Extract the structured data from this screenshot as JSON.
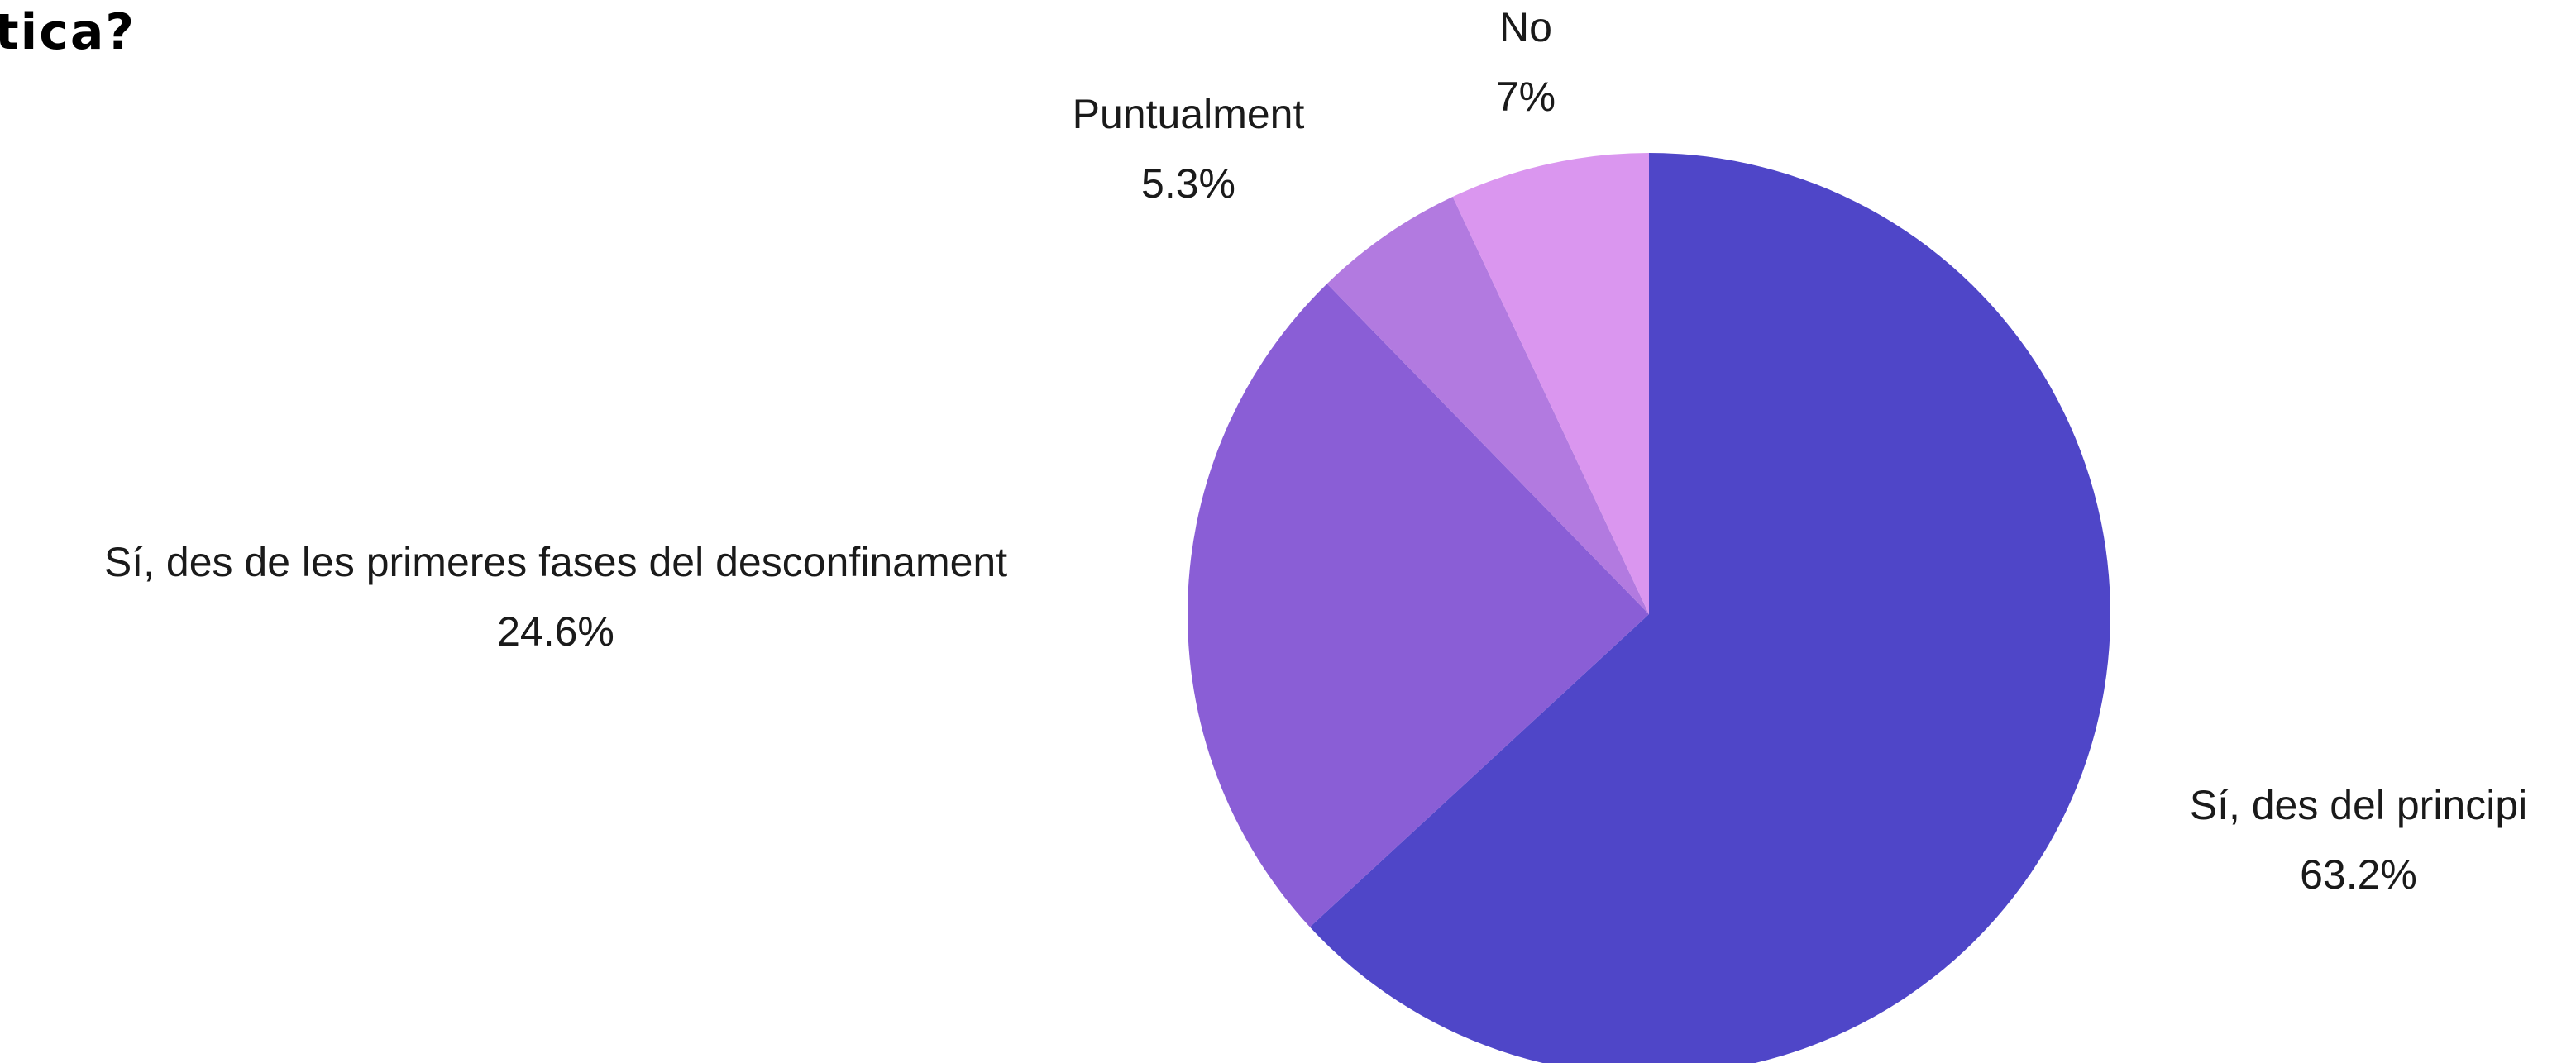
{
  "chart_data": {
    "type": "pie",
    "title": "tica?",
    "start_angle_deg": 0,
    "direction": "clockwise",
    "slices": [
      {
        "label": "Sí, des del principi",
        "value": 63.2,
        "value_label": "63.2%",
        "color": "#4f46c8"
      },
      {
        "label": "Sí, des de les primeres fases del desconfinament",
        "value": 24.6,
        "value_label": "24.6%",
        "color": "#8a5ed6"
      },
      {
        "label": "Puntualment",
        "value": 5.3,
        "value_label": "5.3%",
        "color": "#b27ae0"
      },
      {
        "label": "No",
        "value": 7.0,
        "value_label": "7%",
        "color": "#da96ef"
      }
    ]
  }
}
